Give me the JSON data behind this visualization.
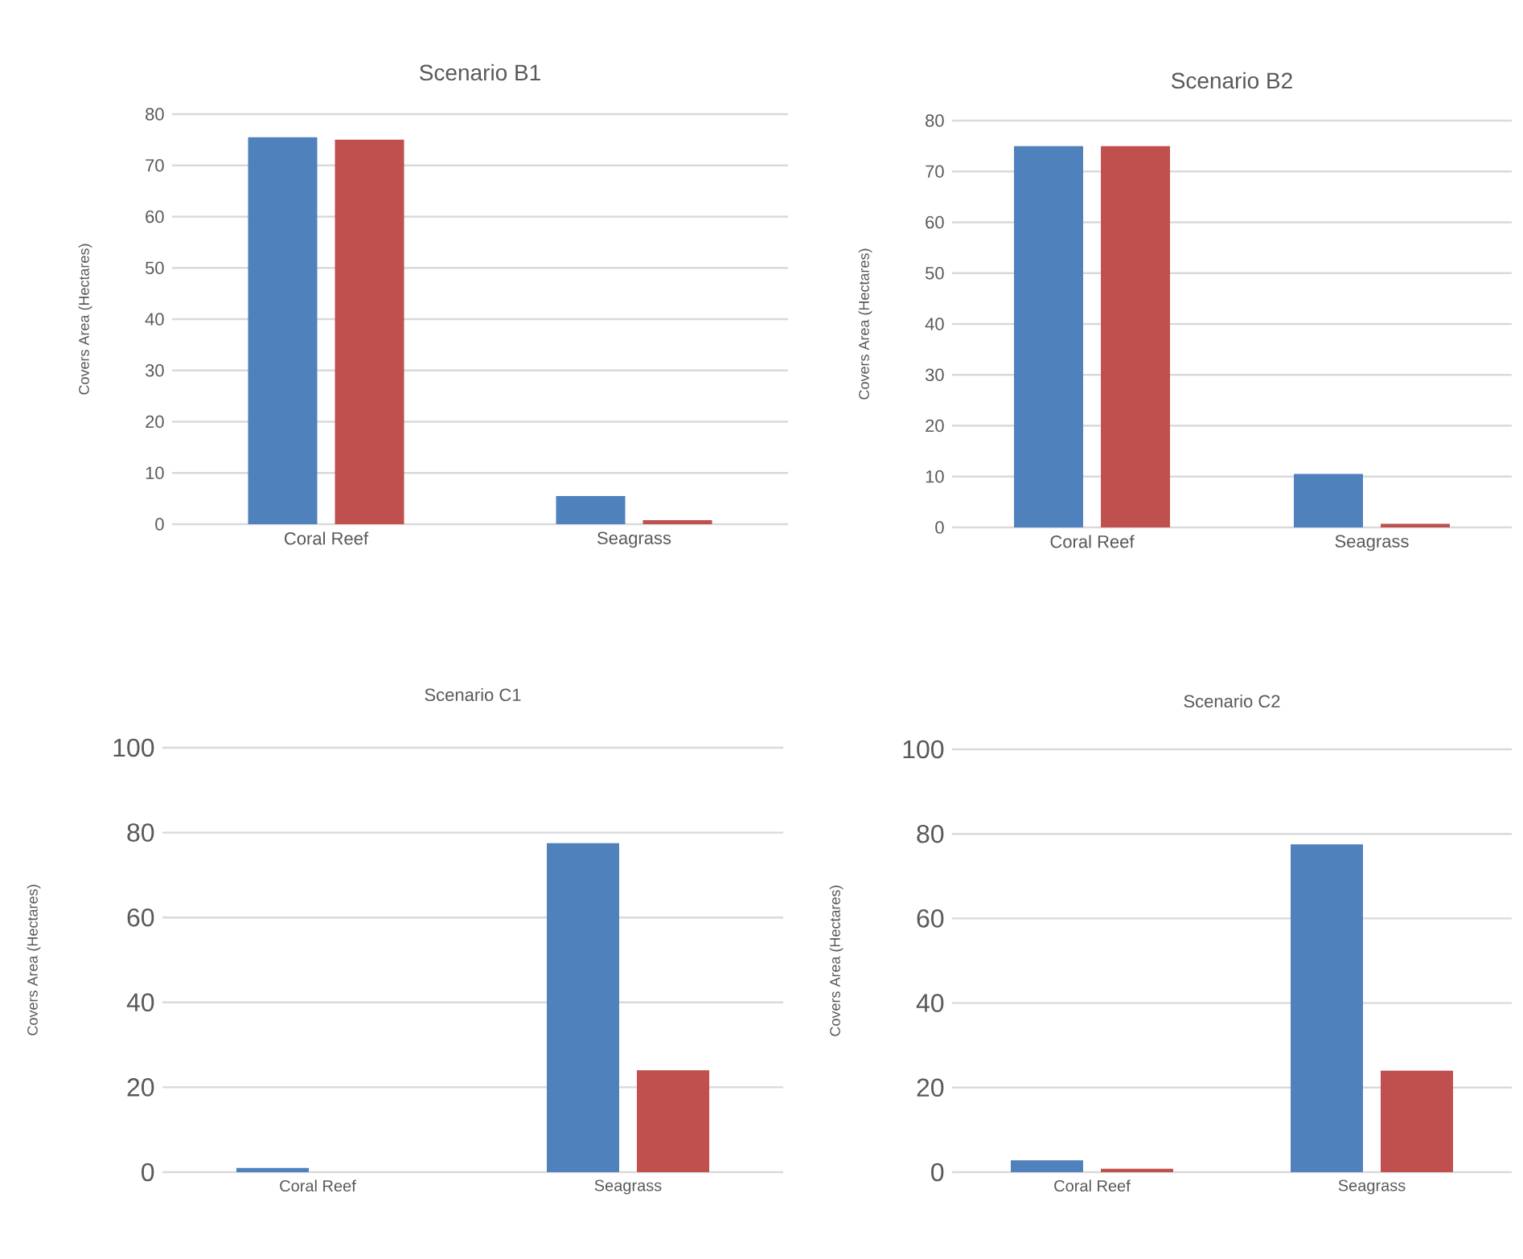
{
  "chart_data": [
    {
      "type": "bar",
      "title": "Scenario B1",
      "ylabel": "Covers Area (Hectares)",
      "categories": [
        "Coral Reef",
        "Seagrass"
      ],
      "ylim": [
        0,
        80
      ],
      "yticks": [
        0,
        10,
        20,
        30,
        40,
        50,
        60,
        70,
        80
      ],
      "grid": "y",
      "series": [
        {
          "color": "#4f81bd",
          "values": [
            75.5,
            5.5
          ]
        },
        {
          "color": "#c0504d",
          "values": [
            75,
            0.8
          ]
        }
      ]
    },
    {
      "type": "bar",
      "title": "Scenario B2",
      "ylabel": "Covers Area (Hectares)",
      "categories": [
        "Coral Reef",
        "Seagrass"
      ],
      "ylim": [
        0,
        80
      ],
      "yticks": [
        0,
        10,
        20,
        30,
        40,
        50,
        60,
        70,
        80
      ],
      "grid": "y",
      "series": [
        {
          "color": "#4f81bd",
          "values": [
            75,
            10.5
          ]
        },
        {
          "color": "#c0504d",
          "values": [
            75,
            0.7
          ]
        }
      ]
    },
    {
      "type": "bar",
      "title": "Scenario C1",
      "ylabel": "Covers Area (Hectares)",
      "categories": [
        "Coral Reef",
        "Seagrass"
      ],
      "ylim": [
        0,
        100
      ],
      "yticks": [
        0,
        20,
        40,
        60,
        80,
        100
      ],
      "grid": "y",
      "series": [
        {
          "color": "#4f81bd",
          "values": [
            1,
            77.5
          ]
        },
        {
          "color": "#c0504d",
          "values": [
            0,
            24
          ]
        }
      ]
    },
    {
      "type": "bar",
      "title": "Scenario C2",
      "ylabel": "Covers Area (Hectares)",
      "categories": [
        "Coral Reef",
        "Seagrass"
      ],
      "ylim": [
        0,
        100
      ],
      "yticks": [
        0,
        20,
        40,
        60,
        80,
        100
      ],
      "grid": "y",
      "series": [
        {
          "color": "#4f81bd",
          "values": [
            2.8,
            77.5
          ]
        },
        {
          "color": "#c0504d",
          "values": [
            0.8,
            24
          ]
        }
      ]
    }
  ]
}
